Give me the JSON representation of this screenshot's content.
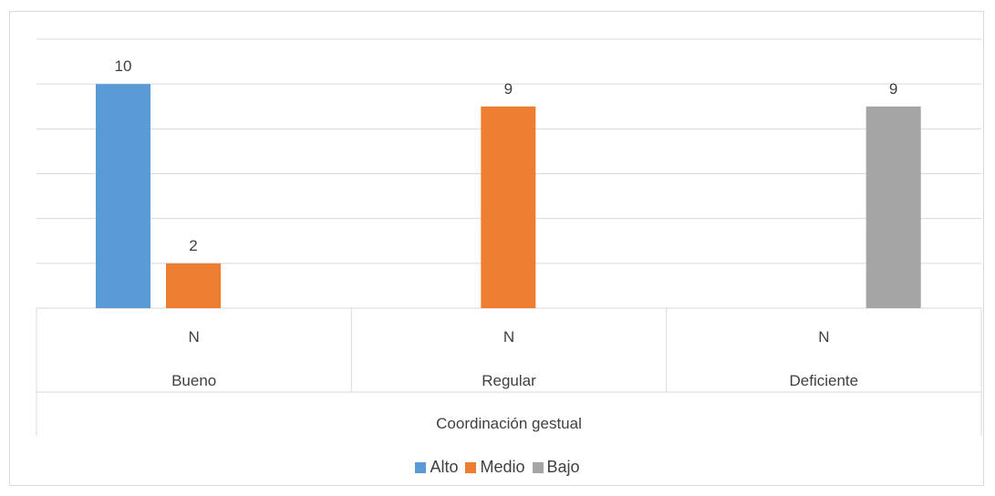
{
  "chart_data": {
    "type": "bar",
    "categories": [
      "Bueno",
      "Regular",
      "Deficiente"
    ],
    "sub_categories": [
      "N",
      "N",
      "N"
    ],
    "group_label": "Coordinación gestual",
    "series": [
      {
        "name": "Alto",
        "color": "#5b9bd5",
        "values": [
          10,
          null,
          null
        ]
      },
      {
        "name": "Medio",
        "color": "#ed7d31",
        "values": [
          2,
          9,
          null
        ]
      },
      {
        "name": "Bajo",
        "color": "#a5a5a5",
        "values": [
          null,
          null,
          9
        ]
      }
    ],
    "ylim": [
      0,
      12
    ],
    "grid": true,
    "legend": "bottom",
    "title": "",
    "xlabel": "",
    "ylabel": ""
  }
}
